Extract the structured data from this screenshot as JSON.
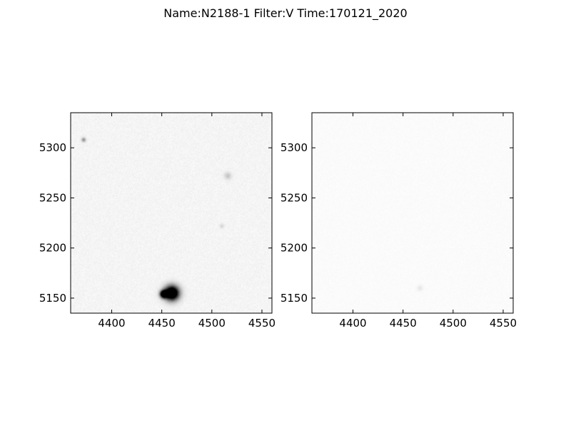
{
  "figure": {
    "title": "Name:N2188-1 Filter:V Time:170121_2020"
  },
  "chart_data": [
    {
      "type": "heatmap",
      "colormap": "gray_r",
      "xlim": [
        4359,
        4560
      ],
      "ylim": [
        5135,
        5335
      ],
      "x_ticks": [
        4400,
        4450,
        4500,
        4550
      ],
      "y_ticks": [
        5150,
        5200,
        5250,
        5300
      ],
      "x_tick_labels": [
        "4400",
        "4450",
        "4500",
        "4550"
      ],
      "y_tick_labels": [
        "5150",
        "5200",
        "5250",
        "5300"
      ],
      "background_level": 0.04,
      "sources": [
        {
          "x": 4460,
          "y": 5155,
          "peak": 1.0,
          "sigma": 5
        },
        {
          "x": 4452,
          "y": 5154,
          "peak": 0.9,
          "sigma": 2.5
        },
        {
          "x": 4372,
          "y": 5308,
          "peak": 0.25,
          "sigma": 1.5
        },
        {
          "x": 4516,
          "y": 5272,
          "peak": 0.12,
          "sigma": 2.5
        },
        {
          "x": 4510,
          "y": 5222,
          "peak": 0.08,
          "sigma": 1.5
        }
      ]
    },
    {
      "type": "heatmap",
      "colormap": "gray_r",
      "xlim": [
        4359,
        4560
      ],
      "ylim": [
        5135,
        5335
      ],
      "x_ticks": [
        4400,
        4450,
        4500,
        4550
      ],
      "y_ticks": [
        5150,
        5200,
        5250,
        5300
      ],
      "x_tick_labels": [
        "4400",
        "4450",
        "4500",
        "4550"
      ],
      "y_tick_labels": [
        "5150",
        "5200",
        "5250",
        "5300"
      ],
      "background_level": 0.015,
      "sources": [
        {
          "x": 4467,
          "y": 5160,
          "peak": 0.05,
          "sigma": 2
        }
      ]
    }
  ]
}
